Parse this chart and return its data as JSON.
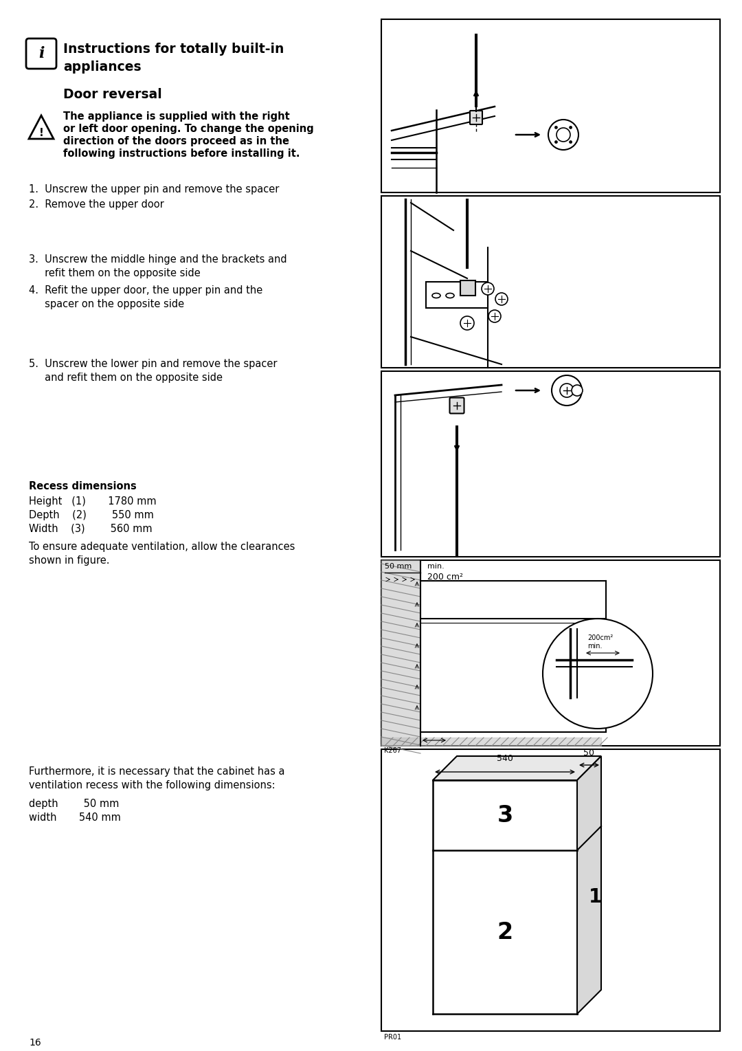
{
  "bg_color": "#ffffff",
  "title_main_line1": "Instructions for totally built-in",
  "title_main_line2": "appliances",
  "title_sub": "Door reversal",
  "warning_text_line1": "The appliance is supplied with the right",
  "warning_text_line2": "or left door opening. To change the opening",
  "warning_text_line3": "direction of the doors proceed as in the",
  "warning_text_line4": "following instructions before installing it.",
  "step1": "1.  Unscrew the upper pin and remove the spacer",
  "step2": "2.  Remove the upper door",
  "step3a": "3.  Unscrew the middle hinge and the brackets and",
  "step3b": "     refit them on the opposite side",
  "step4a": "4.  Refit the upper door, the upper pin and the",
  "step4b": "     spacer on the opposite side",
  "step5a": "5.  Unscrew the lower pin and remove the spacer",
  "step5b": "     and refit them on the opposite side",
  "recess_title": "Recess dimensions",
  "recess_h": "Height   (1)       1780 mm",
  "recess_d": "Depth    (2)        550 mm",
  "recess_w": "Width    (3)        560 mm",
  "recess_note1": "To ensure adequate ventilation, allow the clearances",
  "recess_note2": "shown in figure.",
  "vent_text1": "Furthermore, it is necessary that the cabinet has a",
  "vent_text2": "ventilation recess with the following dimensions:",
  "vent_depth": "depth        50 mm",
  "vent_width": "width       540 mm",
  "page_num": "16",
  "label_k267": "K267",
  "label_pr01": "PR01",
  "dim_50mm": "50 mm",
  "dim_min": "min.",
  "dim_200cm2": "200 cm²",
  "dim_min2": "min.",
  "dim_200cm2_2": "200cm²",
  "dim_540": "540",
  "dim_50": "50"
}
